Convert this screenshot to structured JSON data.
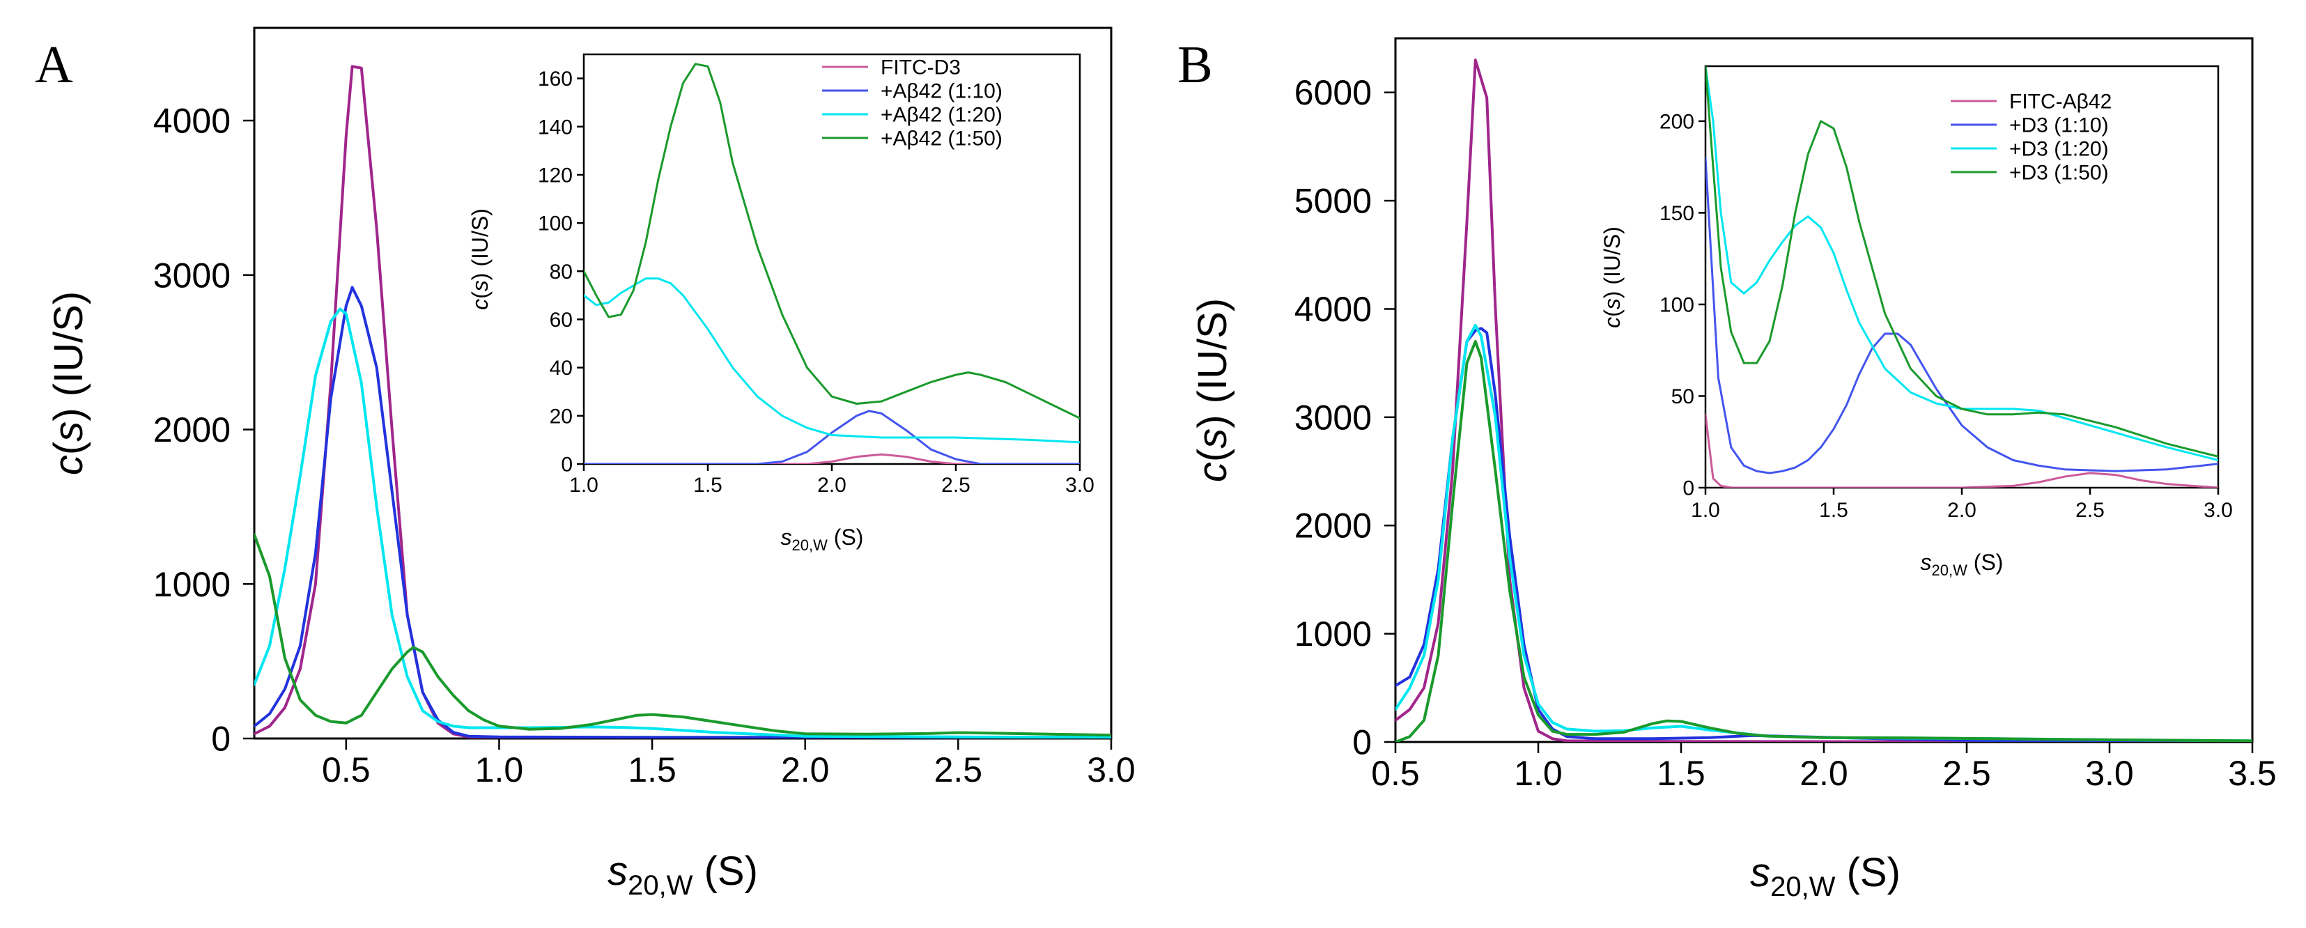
{
  "chart_data": [
    {
      "panel": "A",
      "type": "line",
      "xlabel": "s20,W (S)",
      "ylabel": "c(s) (IU/S)",
      "xlim": [
        0.2,
        3.0
      ],
      "ylim": [
        0,
        4600
      ],
      "xticks": [
        0.5,
        1.0,
        1.5,
        2.0,
        2.5,
        3.0
      ],
      "yticks": [
        0,
        1000,
        2000,
        3000,
        4000
      ],
      "series": [
        {
          "name": "FITC-D3",
          "color": "#a0268c",
          "x": [
            0.2,
            0.25,
            0.3,
            0.35,
            0.4,
            0.45,
            0.5,
            0.52,
            0.55,
            0.6,
            0.65,
            0.7,
            0.75,
            0.8,
            0.85,
            0.9,
            1.0,
            1.5,
            2.0,
            2.5,
            3.0
          ],
          "y": [
            30,
            80,
            200,
            450,
            1000,
            2300,
            3900,
            4350,
            4340,
            3300,
            2000,
            800,
            300,
            100,
            30,
            10,
            5,
            3,
            2,
            2,
            2
          ]
        },
        {
          "name": "+Aβ42 (1:10)",
          "color": "#2233dd",
          "x": [
            0.2,
            0.25,
            0.3,
            0.35,
            0.4,
            0.45,
            0.5,
            0.52,
            0.55,
            0.6,
            0.65,
            0.7,
            0.75,
            0.8,
            0.85,
            0.9,
            1.0,
            1.5,
            2.0,
            2.5,
            3.0
          ],
          "y": [
            80,
            160,
            320,
            600,
            1200,
            2200,
            2800,
            2920,
            2800,
            2400,
            1600,
            800,
            300,
            120,
            40,
            15,
            10,
            8,
            8,
            8,
            8
          ]
        },
        {
          "name": "+Aβ42 (1:20)",
          "color": "#00e6f0",
          "x": [
            0.2,
            0.25,
            0.3,
            0.35,
            0.4,
            0.45,
            0.48,
            0.5,
            0.55,
            0.6,
            0.65,
            0.7,
            0.75,
            0.8,
            0.85,
            0.9,
            1.0,
            1.1,
            1.2,
            1.3,
            1.4,
            1.5,
            1.7,
            2.0,
            2.5,
            3.0
          ],
          "y": [
            350,
            600,
            1100,
            1700,
            2350,
            2700,
            2780,
            2750,
            2300,
            1500,
            800,
            400,
            180,
            110,
            80,
            70,
            70,
            70,
            72,
            75,
            72,
            65,
            40,
            15,
            10,
            8
          ]
        },
        {
          "name": "+Aβ42 (1:50)",
          "color": "#1a9a2c",
          "x": [
            0.2,
            0.25,
            0.3,
            0.35,
            0.4,
            0.45,
            0.5,
            0.55,
            0.6,
            0.65,
            0.7,
            0.72,
            0.75,
            0.8,
            0.85,
            0.9,
            0.95,
            1.0,
            1.1,
            1.2,
            1.3,
            1.4,
            1.45,
            1.5,
            1.6,
            1.7,
            1.8,
            1.9,
            2.0,
            2.2,
            2.4,
            2.5,
            2.6,
            2.8,
            3.0
          ],
          "y": [
            1320,
            1050,
            520,
            250,
            150,
            110,
            100,
            150,
            300,
            450,
            560,
            590,
            560,
            400,
            280,
            180,
            120,
            80,
            60,
            65,
            90,
            130,
            150,
            155,
            140,
            110,
            80,
            50,
            30,
            28,
            32,
            38,
            35,
            28,
            22
          ]
        }
      ],
      "inset": {
        "xlabel": "s20,W (S)",
        "ylabel": "c(s) (IU/S)",
        "xlim": [
          1.0,
          3.0
        ],
        "ylim": [
          0,
          170
        ],
        "xticks": [
          1.0,
          1.5,
          2.0,
          2.5,
          3.0
        ],
        "yticks": [
          0,
          20,
          40,
          60,
          80,
          100,
          120,
          140,
          160
        ],
        "legend_position": "top-right",
        "series": [
          {
            "name": "FITC-D3",
            "color": "#cc5a9a",
            "x": [
              1.0,
              1.5,
              1.9,
              2.0,
              2.1,
              2.2,
              2.3,
              2.4,
              2.5,
              3.0
            ],
            "y": [
              0,
              0,
              0,
              1,
              3,
              4,
              3,
              1,
              0,
              0
            ]
          },
          {
            "name": "+Aβ42 (1:10)",
            "color": "#4455ee",
            "x": [
              1.0,
              1.5,
              1.7,
              1.8,
              1.9,
              2.0,
              2.1,
              2.15,
              2.2,
              2.3,
              2.4,
              2.5,
              2.6,
              3.0
            ],
            "y": [
              0,
              0,
              0,
              1,
              5,
              13,
              20,
              22,
              21,
              14,
              6,
              2,
              0,
              0
            ]
          },
          {
            "name": "+Aβ42 (1:20)",
            "color": "#00e6f0",
            "x": [
              1.0,
              1.05,
              1.1,
              1.15,
              1.2,
              1.25,
              1.3,
              1.35,
              1.4,
              1.5,
              1.6,
              1.7,
              1.8,
              1.9,
              2.0,
              2.2,
              2.5,
              2.8,
              3.0
            ],
            "y": [
              70,
              66,
              67,
              71,
              74,
              77,
              77,
              75,
              70,
              56,
              40,
              28,
              20,
              15,
              12,
              11,
              11,
              10,
              9
            ]
          },
          {
            "name": "+Aβ42 (1:50)",
            "color": "#1a9a2c",
            "x": [
              1.0,
              1.05,
              1.1,
              1.15,
              1.2,
              1.25,
              1.3,
              1.35,
              1.4,
              1.45,
              1.5,
              1.55,
              1.6,
              1.7,
              1.8,
              1.9,
              2.0,
              2.1,
              2.2,
              2.3,
              2.4,
              2.5,
              2.55,
              2.6,
              2.7,
              2.8,
              2.9,
              3.0
            ],
            "y": [
              80,
              70,
              61,
              62,
              72,
              92,
              118,
              140,
              158,
              166,
              165,
              150,
              125,
              90,
              62,
              40,
              28,
              25,
              26,
              30,
              34,
              37,
              38,
              37,
              34,
              29,
              24,
              19
            ]
          }
        ]
      }
    },
    {
      "panel": "B",
      "type": "line",
      "xlabel": "s20,W (S)",
      "ylabel": "c(s) (IU/S)",
      "xlim": [
        0.5,
        3.5
      ],
      "ylim": [
        0,
        6500
      ],
      "xticks": [
        0.5,
        1.0,
        1.5,
        2.0,
        2.5,
        3.0,
        3.5
      ],
      "yticks": [
        0,
        1000,
        2000,
        3000,
        4000,
        5000,
        6000
      ],
      "series": [
        {
          "name": "FITC-Aβ42",
          "color": "#a0268c",
          "x": [
            0.5,
            0.55,
            0.6,
            0.65,
            0.7,
            0.75,
            0.78,
            0.82,
            0.85,
            0.9,
            0.95,
            1.0,
            1.05,
            1.1,
            1.5,
            2.0,
            3.5
          ],
          "y": [
            200,
            300,
            500,
            1100,
            2500,
            4800,
            6300,
            5950,
            4000,
            1500,
            500,
            100,
            30,
            10,
            5,
            3,
            2
          ]
        },
        {
          "name": "+D3 (1:10)",
          "color": "#2233dd",
          "x": [
            0.5,
            0.55,
            0.6,
            0.65,
            0.7,
            0.75,
            0.78,
            0.8,
            0.82,
            0.85,
            0.9,
            0.95,
            1.0,
            1.05,
            1.1,
            1.2,
            1.4,
            1.6,
            1.75,
            1.9,
            2.2,
            2.5,
            3.0,
            3.5
          ],
          "y": [
            520,
            600,
            900,
            1600,
            2800,
            3700,
            3800,
            3820,
            3780,
            3200,
            1900,
            900,
            300,
            120,
            50,
            30,
            30,
            40,
            60,
            50,
            30,
            15,
            8,
            5
          ]
        },
        {
          "name": "+D3 (1:20)",
          "color": "#00e6f0",
          "x": [
            0.5,
            0.55,
            0.6,
            0.65,
            0.7,
            0.75,
            0.78,
            0.8,
            0.85,
            0.9,
            0.95,
            1.0,
            1.05,
            1.1,
            1.2,
            1.3,
            1.4,
            1.5,
            1.6,
            1.8,
            2.0,
            2.3,
            2.6,
            3.0,
            3.5
          ],
          "y": [
            300,
            500,
            800,
            1500,
            2800,
            3700,
            3850,
            3750,
            3000,
            1700,
            800,
            350,
            180,
            120,
            100,
            105,
            130,
            145,
            110,
            55,
            40,
            35,
            30,
            20,
            10
          ]
        },
        {
          "name": "+D3 (1:50)",
          "color": "#1a9a2c",
          "x": [
            0.5,
            0.55,
            0.6,
            0.65,
            0.7,
            0.75,
            0.78,
            0.8,
            0.85,
            0.9,
            0.95,
            1.0,
            1.05,
            1.1,
            1.2,
            1.3,
            1.4,
            1.45,
            1.5,
            1.6,
            1.7,
            1.8,
            2.0,
            2.3,
            2.6,
            3.0,
            3.5
          ],
          "y": [
            0,
            50,
            200,
            800,
            2200,
            3500,
            3700,
            3550,
            2500,
            1400,
            600,
            250,
            100,
            70,
            70,
            90,
            170,
            195,
            190,
            130,
            80,
            55,
            40,
            38,
            30,
            20,
            10
          ]
        }
      ],
      "inset": {
        "xlabel": "s20,W (S)",
        "ylabel": "c(s) (IU/S)",
        "xlim": [
          1.0,
          3.0
        ],
        "ylim": [
          0,
          230
        ],
        "xticks": [
          1.0,
          1.5,
          2.0,
          2.5,
          3.0
        ],
        "yticks": [
          0,
          50,
          100,
          150,
          200
        ],
        "legend_position": "top-right",
        "series": [
          {
            "name": "FITC-Aβ42",
            "color": "#cc5a9a",
            "x": [
              1.0,
              1.03,
              1.06,
              1.1,
              1.2,
              1.5,
              2.0,
              2.2,
              2.3,
              2.4,
              2.5,
              2.6,
              2.7,
              2.8,
              2.9,
              3.0
            ],
            "y": [
              40,
              5,
              1,
              0,
              0,
              0,
              0,
              1,
              3,
              6,
              8,
              7,
              4,
              2,
              1,
              0
            ]
          },
          {
            "name": "+D3 (1:10)",
            "color": "#4455ee",
            "x": [
              1.0,
              1.05,
              1.1,
              1.15,
              1.2,
              1.25,
              1.3,
              1.35,
              1.4,
              1.45,
              1.5,
              1.55,
              1.6,
              1.65,
              1.7,
              1.75,
              1.8,
              1.85,
              1.9,
              2.0,
              2.1,
              2.2,
              2.3,
              2.4,
              2.6,
              2.8,
              3.0
            ],
            "y": [
              180,
              60,
              22,
              12,
              9,
              8,
              9,
              11,
              15,
              22,
              32,
              45,
              62,
              76,
              84,
              84,
              78,
              66,
              54,
              34,
              22,
              15,
              12,
              10,
              9,
              10,
              13
            ]
          },
          {
            "name": "+D3 (1:20)",
            "color": "#00e6f0",
            "x": [
              1.0,
              1.03,
              1.06,
              1.1,
              1.15,
              1.2,
              1.25,
              1.3,
              1.35,
              1.4,
              1.45,
              1.5,
              1.55,
              1.6,
              1.7,
              1.8,
              1.9,
              2.0,
              2.1,
              2.2,
              2.3,
              2.4,
              2.6,
              2.8,
              3.0
            ],
            "y": [
              230,
              200,
              150,
              112,
              106,
              112,
              124,
              134,
              143,
              148,
              142,
              128,
              108,
              90,
              65,
              52,
              46,
              43,
              43,
              43,
              42,
              38,
              30,
              22,
              15
            ]
          },
          {
            "name": "+D3 (1:50)",
            "color": "#1a9a2c",
            "x": [
              1.0,
              1.03,
              1.06,
              1.1,
              1.15,
              1.2,
              1.25,
              1.3,
              1.35,
              1.4,
              1.45,
              1.5,
              1.55,
              1.6,
              1.7,
              1.8,
              1.9,
              2.0,
              2.1,
              2.2,
              2.3,
              2.4,
              2.6,
              2.8,
              3.0
            ],
            "y": [
              230,
              175,
              120,
              85,
              68,
              68,
              80,
              110,
              150,
              182,
              200,
              196,
              175,
              145,
              95,
              65,
              50,
              43,
              40,
              40,
              41,
              40,
              33,
              24,
              17
            ]
          }
        ]
      }
    }
  ]
}
